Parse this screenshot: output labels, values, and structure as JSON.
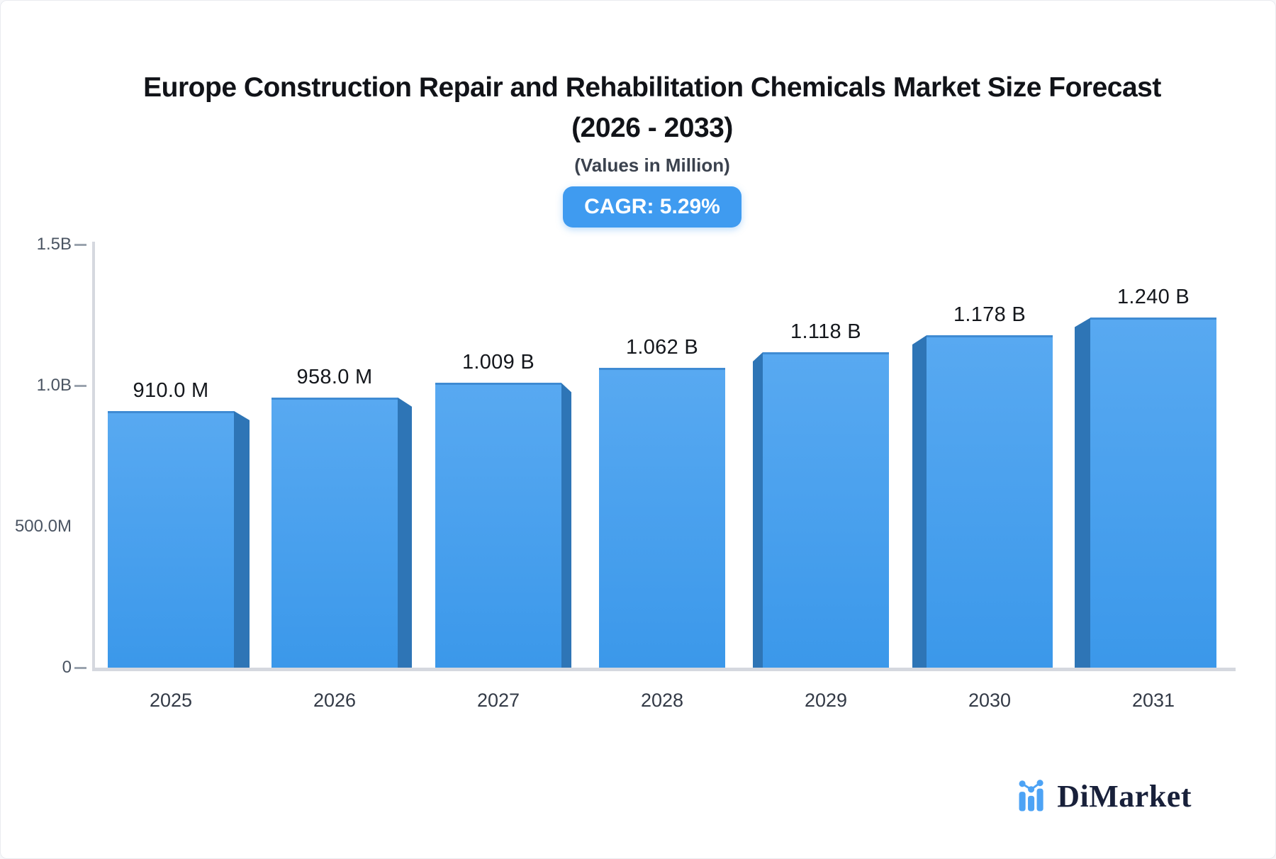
{
  "page": {
    "background": "#f6f7f9",
    "card_background": "#ffffff",
    "card_border": "#e9ebf0"
  },
  "header": {
    "title_line1": "Europe Construction Repair and Rehabilitation Chemicals Market Size Forecast",
    "title_line2": "(2026 - 2033)",
    "subtitle": "(Values in Million)",
    "cagr_badge": "CAGR: 5.29%",
    "badge_color": "#3f9bf0"
  },
  "chart_data": {
    "type": "bar",
    "title": "Europe Construction Repair and Rehabilitation Chemicals Market Size Forecast (2026 - 2033)",
    "subtitle": "(Values in Million)",
    "cagr_percent": 5.29,
    "categories": [
      "2025",
      "2026",
      "2027",
      "2028",
      "2029",
      "2030",
      "2031"
    ],
    "values_million": [
      910.0,
      958.0,
      1009,
      1062,
      1118,
      1178,
      1240
    ],
    "value_labels": [
      "910.0 M",
      "958.0 M",
      "1.009 B",
      "1.062 B",
      "1.118 B",
      "1.178 B",
      "1.240 B"
    ],
    "xlabel": "",
    "ylabel": "",
    "ylim_million": [
      0,
      1500
    ],
    "yticks": [
      {
        "label": "0",
        "value_million": 0,
        "dash": true
      },
      {
        "label": "500.0M",
        "value_million": 500,
        "dash": false
      },
      {
        "label": "1.0B",
        "value_million": 1000,
        "dash": true
      },
      {
        "label": "1.5B",
        "value_million": 1500,
        "dash": true
      }
    ],
    "grid": "off",
    "legend": "none",
    "bar_style": "3d-extruded-toward-center",
    "colors": {
      "bar_top": "#58a9f1",
      "bar_bottom": "#3b98ea",
      "bar_top_border": "#3f8bd3",
      "bar_side": "#2e75b6",
      "axis": "#d5d8df",
      "tick_dash": "#9aa3ae",
      "tick_text": "#4a5462",
      "value_text": "#14171c",
      "year_text": "#333a46"
    }
  },
  "footer": {
    "brand": "DiMarket",
    "brand_color": "#18203a",
    "logo_icon": "bar-chart-trend-icon",
    "logo_icon_color": "#4da3f5"
  }
}
